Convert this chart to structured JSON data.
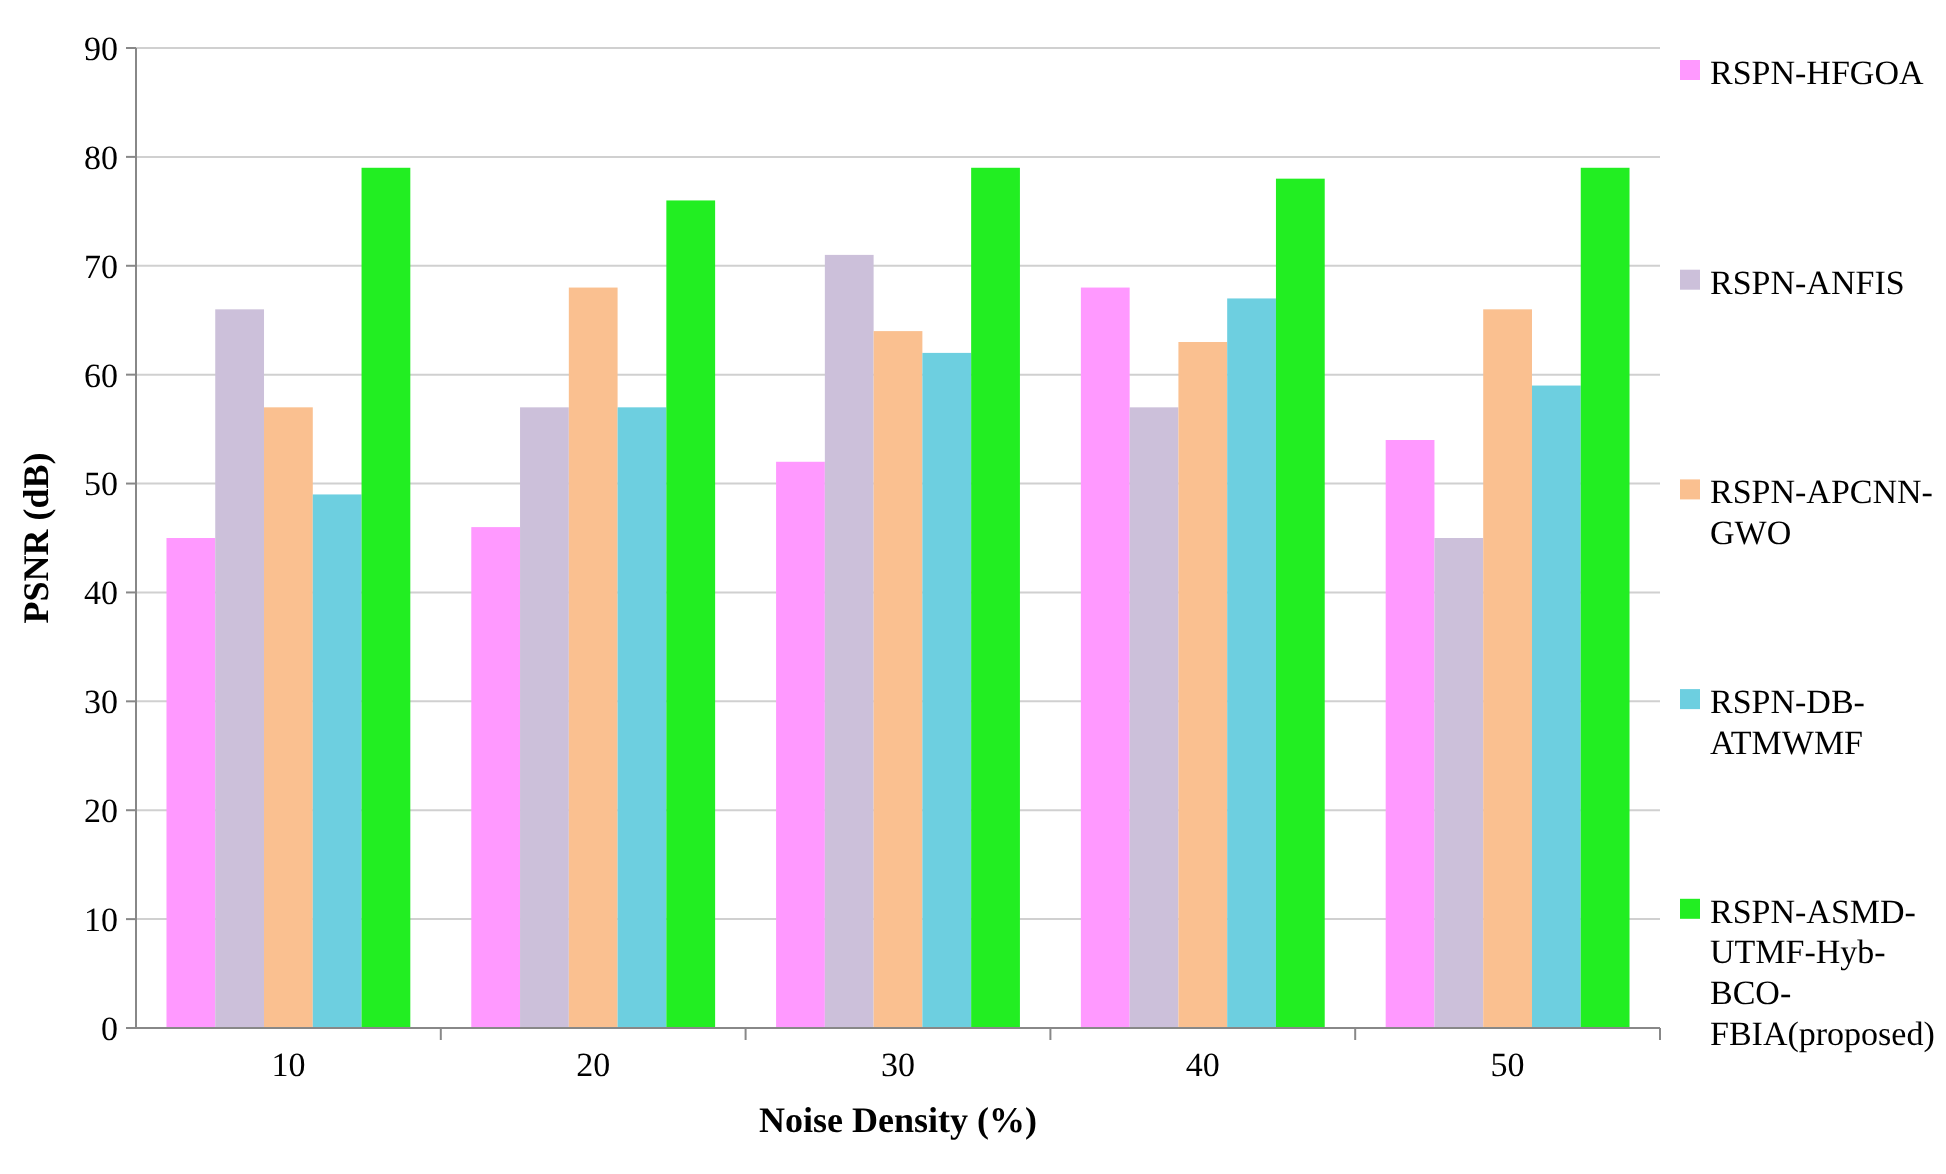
{
  "chart_data": {
    "type": "bar",
    "xlabel": "Noise Density (%)",
    "ylabel": "PSNR (dB)",
    "categories": [
      "10",
      "20",
      "30",
      "40",
      "50"
    ],
    "series": [
      {
        "name": "RSPN-HFGOA",
        "color": "#ff99ff",
        "values": [
          45,
          46,
          52,
          68,
          54
        ]
      },
      {
        "name": "RSPN-ANFIS",
        "color": "#ccc0da",
        "values": [
          66,
          57,
          71,
          57,
          45
        ]
      },
      {
        "name": "RSPN-APCNN-GWO",
        "color": "#fac090",
        "values": [
          57,
          68,
          64,
          63,
          66
        ]
      },
      {
        "name": "RSPN-DB-ATMWMF",
        "color": "#6dcfe0",
        "values": [
          49,
          57,
          62,
          67,
          59
        ]
      },
      {
        "name": "RSPN-ASMD-UTMF-Hyb-BCO-FBIA(proposed)",
        "color": "#22ee22",
        "values": [
          79,
          76,
          79,
          78,
          79
        ]
      }
    ],
    "ylim": [
      0,
      90
    ],
    "yticks": [
      0,
      10,
      20,
      30,
      40,
      50,
      60,
      70,
      80,
      90
    ],
    "grid": "y",
    "legend": "right"
  }
}
